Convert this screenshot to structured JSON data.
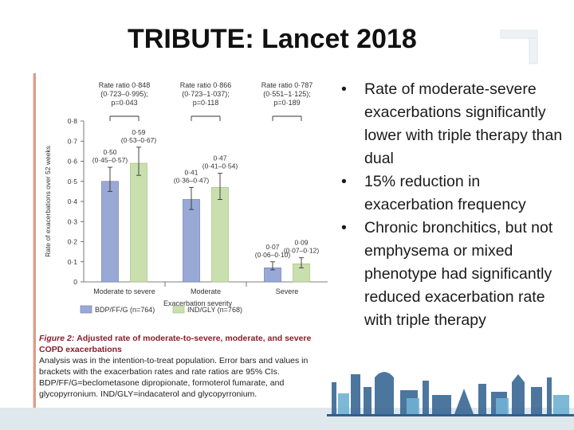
{
  "slide": {
    "title": "TRIBUTE: Lancet 2018",
    "bullets": [
      "Rate of moderate-severe exacerbations significantly lower with triple therapy than dual",
      "15% reduction in exacerbation frequency",
      "Chronic bronchitics, but not emphysema or mixed phenotype had significantly reduced exacerbation rate with triple therapy"
    ]
  },
  "figure": {
    "caption_lead": "Figure 2:",
    "caption_title": "Adjusted rate of moderate-to-severe, moderate, and severe COPD exacerbations",
    "caption_body": "Analysis was in the intention-to-treat population. Error bars and values in brackets with the exacerbation rates and rate ratios are 95% CIs. BDP/FF/G=beclometasone dipropionate, formoterol fumarate, and glycopyrronium. IND/GLY=indacaterol and glycopyrronium."
  },
  "chart_data": {
    "type": "bar",
    "title": "",
    "xlabel": "Exacerbation severity",
    "ylabel": "Rate of exacerbations over 52 weeks",
    "ylim": [
      0,
      0.8
    ],
    "yticks": [
      0,
      0.1,
      0.2,
      0.3,
      0.4,
      0.5,
      0.6,
      0.7,
      0.8
    ],
    "ytick_labels": [
      "0",
      "0·1",
      "0·2",
      "0·3",
      "0·4",
      "0·5",
      "0·6",
      "0·7",
      "0·8"
    ],
    "categories": [
      "Moderate to severe",
      "Moderate",
      "Severe"
    ],
    "series": [
      {
        "name": "BDP/FF/G (n=764)",
        "color": "#9aa8d6",
        "values": [
          0.5,
          0.41,
          0.07
        ],
        "ci_low": [
          0.45,
          0.36,
          0.06
        ],
        "ci_high": [
          0.57,
          0.47,
          0.1
        ],
        "labels": [
          "0·50",
          "0·41",
          "0·07"
        ],
        "ci_labels": [
          "(0·45–0·57)",
          "(0·36–0·47)",
          "(0·06–0·10)"
        ]
      },
      {
        "name": "IND/GLY (n=768)",
        "color": "#c9dfae",
        "values": [
          0.59,
          0.47,
          0.09
        ],
        "ci_low": [
          0.53,
          0.41,
          0.07
        ],
        "ci_high": [
          0.67,
          0.54,
          0.12
        ],
        "labels": [
          "0·59",
          "0·47",
          "0·09"
        ],
        "ci_labels": [
          "(0·53–0·67)",
          "(0·41–0·54)",
          "(0·07–0·12)"
        ]
      }
    ],
    "rate_ratios": [
      {
        "text": "Rate ratio 0·848",
        "ci": "(0·723–0·995);",
        "p": "p=0·043"
      },
      {
        "text": "Rate ratio 0·866",
        "ci": "(0·723–1·037);",
        "p": "p=0·118"
      },
      {
        "text": "Rate ratio 0·787",
        "ci": "(0·551–1·125);",
        "p": "p=0·189"
      }
    ],
    "legend_position": "bottom"
  }
}
